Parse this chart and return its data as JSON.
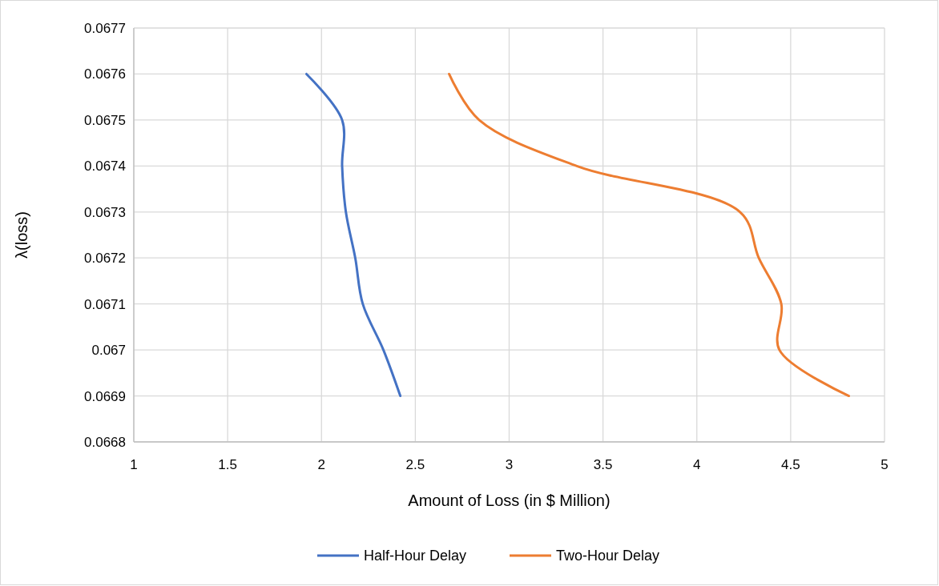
{
  "chart_data": {
    "type": "line",
    "xlabel": "Amount of Loss (in $ Million)",
    "ylabel": "λ(loss)",
    "xlim": [
      1,
      5
    ],
    "xticks": [
      1,
      1.5,
      2,
      2.5,
      3,
      3.5,
      4,
      4.5,
      5
    ],
    "ylim": [
      0.0668,
      0.0677
    ],
    "yticks": [
      0.0668,
      0.0669,
      0.067,
      0.0671,
      0.0672,
      0.0673,
      0.0674,
      0.0675,
      0.0676,
      0.0677
    ],
    "grid": true,
    "legend": "bottom",
    "line_style": "solid",
    "marker": "none",
    "series": [
      {
        "name": "Half-Hour Delay",
        "color": "#4472c4",
        "x": [
          1.92,
          2.11,
          2.11,
          2.13,
          2.18,
          2.22,
          2.33,
          2.42
        ],
        "values": [
          0.0676,
          0.0675,
          0.0674,
          0.0673,
          0.0672,
          0.0671,
          0.067,
          0.0669
        ]
      },
      {
        "name": "Two-Hour Delay",
        "color": "#ed7d31",
        "x": [
          2.68,
          2.84,
          3.36,
          4.23,
          4.33,
          4.45,
          4.44,
          4.81
        ],
        "values": [
          0.0676,
          0.0675,
          0.0674,
          0.0673,
          0.0672,
          0.0671,
          0.067,
          0.0669
        ]
      }
    ]
  }
}
